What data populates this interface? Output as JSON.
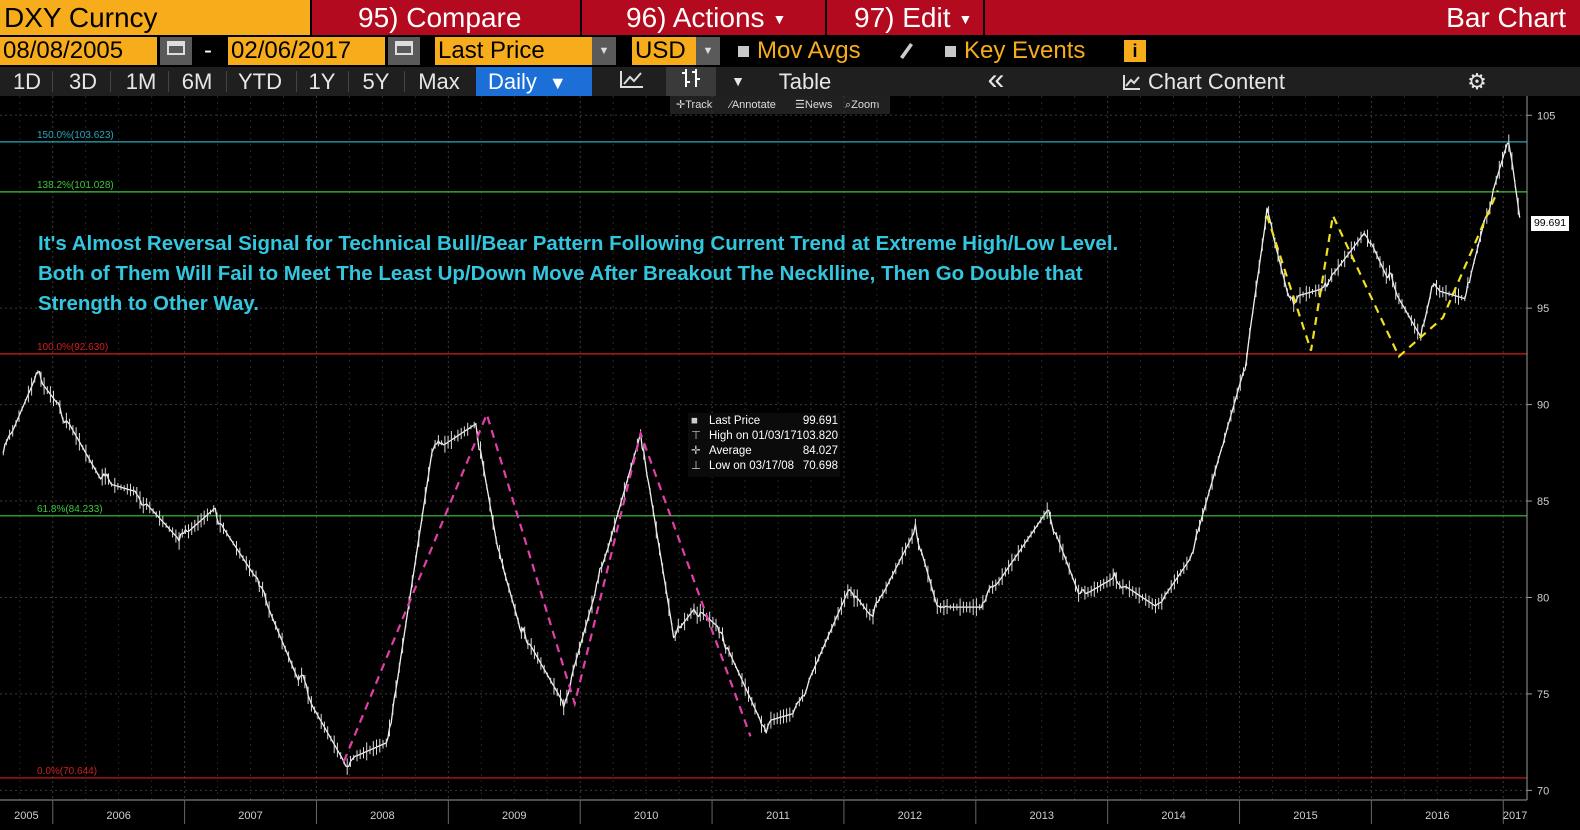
{
  "header": {
    "ticker": "DXY Curncy",
    "compare": "95) Compare",
    "actions": "96) Actions",
    "edit": "97) Edit",
    "chart_kind": "Bar Chart"
  },
  "options": {
    "start_date": "08/08/2005",
    "dash": "-",
    "end_date": "02/06/2017",
    "field": "Last Price",
    "currency": "USD",
    "mov_avgs": "Mov Avgs",
    "key_events": "Key Events",
    "info": "i"
  },
  "periods": {
    "tabs": [
      "1D",
      "3D",
      "1M",
      "6M",
      "YTD",
      "1Y",
      "5Y",
      "Max"
    ],
    "frequency": "Daily",
    "table": "Table",
    "collapse": "«",
    "chart_content": "Chart Content"
  },
  "toolbar": {
    "track": "Track",
    "annotate": "Annotate",
    "news": "News",
    "zoom": "Zoom"
  },
  "annotation": {
    "line1": "It's Almost Reversal Signal for Technical Bull/Bear Pattern Following Current Trend at Extreme High/Low Level.",
    "line2": "Both of Them Will Fail to Meet The Least Up/Down Move After Breakout The Necklline, Then Go Double that",
    "line3": "Strength to Other Way."
  },
  "legend": {
    "last_label": "Last Price",
    "last_value": "99.691",
    "high_label": "High on 01/03/17",
    "high_value": "103.820",
    "avg_label": "Average",
    "avg_value": "84.027",
    "low_label": "Low on 03/17/08",
    "low_value": "70.698"
  },
  "last_price_tag": "99.691",
  "colors": {
    "ticker_bg": "#f7ac1b",
    "header_bg": "#b30a1f",
    "active_tab": "#1c6fd6",
    "annotation_text": "#33c6df",
    "magenta_pattern": "#e040a8",
    "yellow_pattern": "#f0e020",
    "fib_cyan": "#2aa7b8",
    "fib_green": "#3cc83c",
    "fib_red": "#d21e1e"
  },
  "icons": {
    "calendar": "calendar-icon",
    "dropdown": "chevron-down-icon",
    "pencil": "pencil-icon",
    "line_chart": "line-chart-icon",
    "bar_chart": "bar-chart-icon",
    "settings": "gear-icon"
  },
  "chart_data": {
    "type": "line",
    "series": [
      {
        "name": "Last Price",
        "x": [
          "2005-08",
          "2005-11",
          "2006-01",
          "2006-05",
          "2006-08",
          "2006-12",
          "2007-03",
          "2007-07",
          "2007-11",
          "2008-03",
          "2008-07",
          "2008-11",
          "2009-03",
          "2009-05",
          "2009-07",
          "2009-11",
          "2010-02",
          "2010-06",
          "2010-09",
          "2010-11",
          "2011-01",
          "2011-05",
          "2011-08",
          "2012-01",
          "2012-03",
          "2012-07",
          "2012-09",
          "2013-01",
          "2013-07",
          "2013-10",
          "2014-01",
          "2014-05",
          "2014-08",
          "2014-11",
          "2015-01",
          "2015-03",
          "2015-05",
          "2015-08",
          "2015-12",
          "2016-02",
          "2016-05",
          "2016-06",
          "2016-09",
          "2016-11",
          "2017-01",
          "2017-02"
        ],
        "y": [
          87.5,
          91.5,
          90.0,
          86.0,
          85.5,
          83.0,
          84.5,
          81.0,
          75.5,
          71.5,
          72.5,
          87.5,
          89.0,
          82.5,
          78.5,
          74.5,
          80.5,
          88.5,
          78.0,
          79.5,
          78.5,
          73.5,
          74.0,
          80.5,
          79.0,
          83.5,
          79.5,
          79.5,
          84.5,
          80.0,
          81.0,
          79.5,
          82.0,
          88.0,
          92.0,
          100.0,
          95.5,
          96.0,
          99.0,
          96.5,
          93.5,
          96.0,
          95.5,
          100.0,
          103.8,
          99.691
        ]
      }
    ],
    "overlays": {
      "magenta_lines": [
        {
          "x": [
            "2008-03",
            "2009-04",
            "2009-12",
            "2010-06",
            "2011-04"
          ],
          "y": [
            71.5,
            89.5,
            74.5,
            88.5,
            72.8
          ]
        }
      ],
      "yellow_lines": [
        {
          "x": [
            "2015-03",
            "2015-07",
            "2015-09",
            "2016-03",
            "2016-07",
            "2016-12"
          ],
          "y": [
            99.8,
            92.8,
            99.8,
            92.5,
            94.5,
            101.1
          ]
        }
      ]
    },
    "fibonacci": [
      {
        "label": "150.0%(103.623)",
        "value": 103.623,
        "color": "#2aa7b8"
      },
      {
        "label": "138.2%(101.028)",
        "value": 101.028,
        "color": "#3cc83c"
      },
      {
        "label": "100.0%(92.630)",
        "value": 92.63,
        "color": "#d21e1e"
      },
      {
        "label": "61.8%(84.233)",
        "value": 84.233,
        "color": "#3cc83c"
      },
      {
        "label": "0.0%(70.644)",
        "value": 70.644,
        "color": "#d21e1e"
      }
    ],
    "y_ticks": [
      "105",
      "95",
      "90",
      "85",
      "80",
      "75",
      "70"
    ],
    "ylim": [
      69.5,
      106
    ],
    "x_ticks": [
      "2005",
      "2006",
      "2007",
      "2008",
      "2009",
      "2010",
      "2011",
      "2012",
      "2013",
      "2014",
      "2015",
      "2016",
      "2017"
    ],
    "grid": true
  }
}
